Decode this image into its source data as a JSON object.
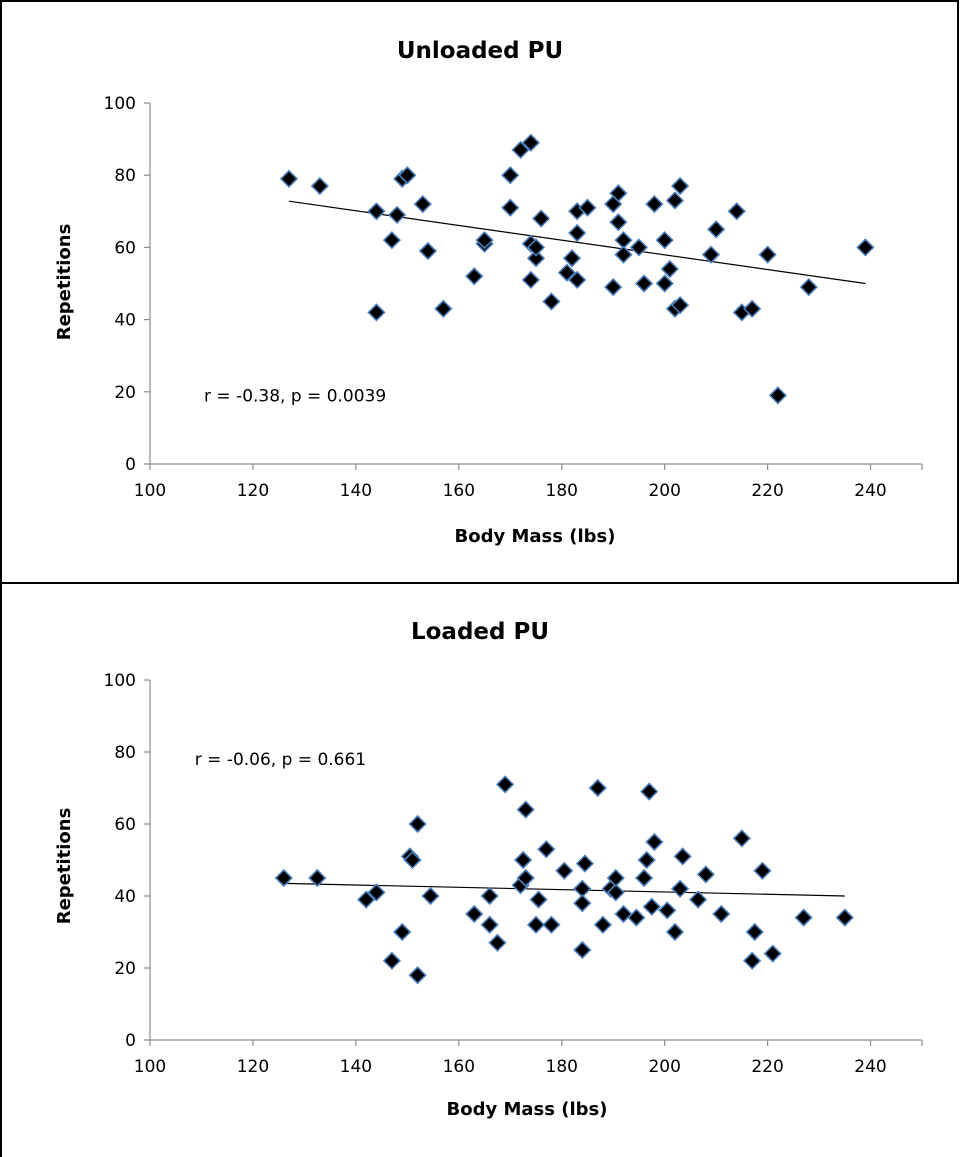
{
  "chart_data": [
    {
      "type": "scatter",
      "title": "Unloaded PU",
      "xlabel": "Body Mass (lbs)",
      "ylabel": "Repetitions",
      "xlim": [
        100,
        250
      ],
      "ylim": [
        0,
        100
      ],
      "xticks": [
        100,
        120,
        140,
        160,
        180,
        200,
        220,
        240
      ],
      "yticks": [
        0,
        20,
        40,
        60,
        80,
        100
      ],
      "xtick_labels": [
        "100",
        "120",
        "140",
        "160",
        "180",
        "200",
        "220",
        "240"
      ],
      "ytick_labels": [
        "0",
        "20",
        "40",
        "60",
        "80",
        "100"
      ],
      "annotation": "r = -0.38, p = 0.0039",
      "annotation_anchor": [
        110.5,
        19
      ],
      "trendline": {
        "x": [
          127,
          239
        ],
        "y": [
          72.8,
          50
        ]
      },
      "points": [
        [
          127,
          79
        ],
        [
          133,
          77
        ],
        [
          144,
          70
        ],
        [
          144,
          42
        ],
        [
          147,
          62
        ],
        [
          148,
          69
        ],
        [
          149,
          79
        ],
        [
          150,
          80
        ],
        [
          153,
          72
        ],
        [
          154,
          59
        ],
        [
          157,
          43
        ],
        [
          163,
          52
        ],
        [
          165,
          61
        ],
        [
          165,
          62
        ],
        [
          170,
          80
        ],
        [
          170,
          71
        ],
        [
          172,
          87
        ],
        [
          174,
          89
        ],
        [
          174,
          61
        ],
        [
          174,
          51
        ],
        [
          175,
          57
        ],
        [
          175,
          60
        ],
        [
          176,
          68
        ],
        [
          178,
          45
        ],
        [
          181,
          53
        ],
        [
          182,
          57
        ],
        [
          183,
          70
        ],
        [
          183,
          64
        ],
        [
          183,
          51
        ],
        [
          185,
          71
        ],
        [
          190,
          72
        ],
        [
          190,
          49
        ],
        [
          191,
          75
        ],
        [
          191,
          67
        ],
        [
          192,
          62
        ],
        [
          192,
          58
        ],
        [
          195,
          60
        ],
        [
          196,
          50
        ],
        [
          198,
          72
        ],
        [
          200,
          62
        ],
        [
          200,
          50
        ],
        [
          201,
          54
        ],
        [
          202,
          43
        ],
        [
          202,
          73
        ],
        [
          203,
          77
        ],
        [
          203,
          44
        ],
        [
          209,
          58
        ],
        [
          210,
          65
        ],
        [
          214,
          70
        ],
        [
          215,
          42
        ],
        [
          217,
          43
        ],
        [
          220,
          58
        ],
        [
          222,
          19
        ],
        [
          228,
          49
        ],
        [
          239,
          60
        ]
      ]
    },
    {
      "type": "scatter",
      "title": "Loaded PU",
      "xlabel": "Body Mass (lbs)",
      "ylabel": "Repetitions",
      "xlim": [
        100,
        250
      ],
      "ylim": [
        0,
        100
      ],
      "xticks": [
        100,
        120,
        140,
        160,
        180,
        200,
        220,
        240
      ],
      "yticks": [
        0,
        20,
        40,
        60,
        80,
        100
      ],
      "xtick_labels": [
        "100",
        "120",
        "140",
        "160",
        "180",
        "200",
        "220",
        "240"
      ],
      "ytick_labels": [
        "0",
        "20",
        "40",
        "60",
        "80",
        "100"
      ],
      "annotation": "r = -0.06, p = 0.661",
      "annotation_anchor": [
        108.7,
        78
      ],
      "trendline": {
        "x": [
          126,
          235
        ],
        "y": [
          43.5,
          40
        ]
      },
      "points": [
        [
          126,
          45
        ],
        [
          132.5,
          45
        ],
        [
          142,
          39
        ],
        [
          144,
          41
        ],
        [
          147,
          22
        ],
        [
          149,
          30
        ],
        [
          150.5,
          51
        ],
        [
          151,
          50
        ],
        [
          152,
          60
        ],
        [
          152,
          18
        ],
        [
          154.5,
          40
        ],
        [
          163,
          35
        ],
        [
          166,
          40
        ],
        [
          166,
          32
        ],
        [
          167.5,
          27
        ],
        [
          169,
          71
        ],
        [
          172,
          43
        ],
        [
          172.5,
          50
        ],
        [
          173,
          64
        ],
        [
          173,
          45
        ],
        [
          175,
          32
        ],
        [
          175.5,
          39
        ],
        [
          177,
          53
        ],
        [
          178,
          32
        ],
        [
          180.5,
          47
        ],
        [
          184,
          25
        ],
        [
          184,
          42
        ],
        [
          184,
          38
        ],
        [
          184.5,
          49
        ],
        [
          187,
          70
        ],
        [
          188,
          32
        ],
        [
          189.5,
          42
        ],
        [
          190.5,
          41
        ],
        [
          190.5,
          45
        ],
        [
          192,
          35
        ],
        [
          194.5,
          34
        ],
        [
          196,
          45
        ],
        [
          196.5,
          50
        ],
        [
          197,
          69
        ],
        [
          197.5,
          37
        ],
        [
          198,
          55
        ],
        [
          200.5,
          36
        ],
        [
          202,
          30
        ],
        [
          203,
          42
        ],
        [
          203.5,
          51
        ],
        [
          206.5,
          39
        ],
        [
          208,
          46
        ],
        [
          211,
          35
        ],
        [
          215,
          56
        ],
        [
          217,
          22
        ],
        [
          217.5,
          30
        ],
        [
          219,
          47
        ],
        [
          221,
          24
        ],
        [
          227,
          34
        ],
        [
          235,
          34
        ]
      ]
    }
  ]
}
